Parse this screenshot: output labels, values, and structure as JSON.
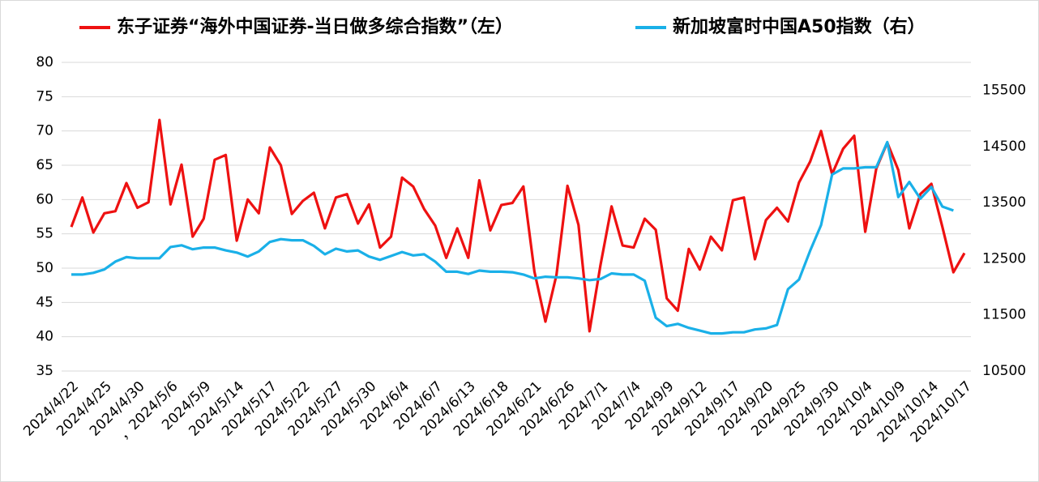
{
  "chart_data": {
    "type": "line",
    "categories": [
      "2024/4/22",
      null,
      null,
      "2024/4/25",
      null,
      null,
      "2024/4/30",
      null,
      null,
      "，2024/5/6",
      null,
      null,
      "2024/5/9",
      null,
      null,
      "2024/5/14",
      null,
      null,
      "2024/5/17",
      null,
      null,
      "2024/5/22",
      null,
      null,
      "2024/5/27",
      null,
      null,
      "2024/5/30",
      null,
      null,
      "2024/6/4",
      null,
      null,
      "2024/6/7",
      null,
      null,
      "2024/6/13",
      null,
      null,
      "2024/6/18",
      null,
      null,
      "2024/6/21",
      null,
      null,
      "2024/6/26",
      null,
      null,
      "2024/7/1",
      null,
      null,
      "2024/7/4",
      null,
      null,
      "2024/9/9",
      null,
      null,
      "2024/9/12",
      null,
      null,
      "2024/9/17",
      null,
      null,
      "2024/9/20",
      null,
      null,
      "2024/9/25",
      null,
      null,
      "2024/9/30",
      null,
      null,
      "2024/10/4",
      null,
      null,
      "2024/10/9",
      null,
      null,
      "2024/10/14",
      null,
      null,
      "2024/10/17"
    ],
    "series": [
      {
        "name": "东子证券“海外中国证券-当日做多综合指数”（左）",
        "color": "#ee1111",
        "axis": "y",
        "values": [
          56,
          60.3,
          55.2,
          58,
          58.3,
          62.4,
          58.8,
          59.6,
          71.6,
          59.3,
          65.1,
          54.6,
          57.2,
          65.8,
          66.5,
          54,
          60,
          58,
          67.6,
          65,
          57.9,
          59.8,
          61,
          55.8,
          60.3,
          60.8,
          56.5,
          59.3,
          53,
          54.6,
          63.2,
          61.9,
          58.6,
          56.2,
          51.5,
          55.8,
          51.5,
          62.8,
          55.5,
          59.2,
          59.5,
          61.9,
          49.5,
          42.2,
          49,
          62,
          56.3,
          40.8,
          50.5,
          59,
          53.3,
          53,
          57.2,
          55.6,
          45.6,
          43.8,
          52.8,
          49.8,
          54.6,
          52.6,
          59.9,
          60.3,
          51.3,
          57,
          58.8,
          56.8,
          62.5,
          65.5,
          70,
          63.7,
          67.4,
          69.3,
          55.3,
          64.5,
          68.3,
          64.3,
          55.8,
          60.8,
          62.3,
          56,
          49.4,
          52.2
        ]
      },
      {
        "name": "新加坡富时中国A50指数（右）",
        "color": "#1ab0e8",
        "axis": "y2",
        "values": [
          12220,
          12220,
          12250,
          12310,
          12450,
          12530,
          12510,
          12510,
          12510,
          12710,
          12740,
          12670,
          12700,
          12700,
          12650,
          12610,
          12540,
          12630,
          12800,
          12850,
          12830,
          12830,
          12730,
          12580,
          12680,
          12630,
          12650,
          12540,
          12480,
          12550,
          12620,
          12560,
          12580,
          12450,
          12270,
          12270,
          12230,
          12290,
          12270,
          12270,
          12260,
          12220,
          12150,
          12180,
          12170,
          12170,
          12150,
          12120,
          12140,
          12240,
          12220,
          12220,
          12110,
          11450,
          11300,
          11340,
          11270,
          11220,
          11170,
          11170,
          11190,
          11190,
          11240,
          11260,
          11320,
          11960,
          12130,
          12640,
          13100,
          14000,
          14110,
          14110,
          14130,
          14130,
          14580,
          13600,
          13870,
          13570,
          13780,
          13430,
          13360,
          null
        ]
      }
    ],
    "ylim": [
      35,
      80
    ],
    "yticks": [
      35,
      40,
      45,
      50,
      55,
      60,
      65,
      70,
      75,
      80
    ],
    "y2lim": [
      10500,
      16000
    ],
    "y2ticks": [
      10500,
      11500,
      12500,
      13500,
      14500,
      15500
    ],
    "grid": true,
    "legend": "top"
  }
}
